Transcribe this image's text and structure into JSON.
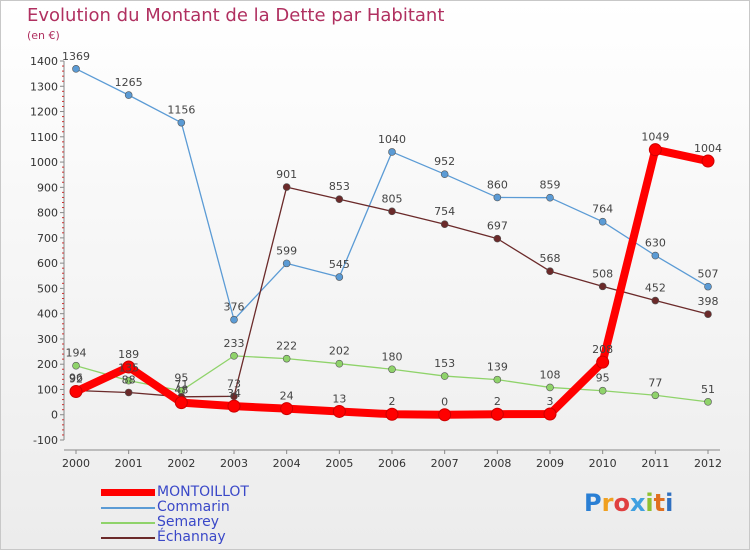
{
  "title": "Evolution du Montant de la Dette par Habitant",
  "subtitle": "(en €)",
  "logo_text": "Proxiti",
  "chart_data": {
    "type": "line",
    "x": [
      "2000",
      "2001",
      "2002",
      "2003",
      "2004",
      "2005",
      "2006",
      "2007",
      "2008",
      "2009",
      "2010",
      "2011",
      "2012"
    ],
    "ylim": [
      -100,
      1400
    ],
    "yticks": [
      -100,
      0,
      100,
      200,
      300,
      400,
      500,
      600,
      700,
      800,
      900,
      1000,
      1100,
      1200,
      1300,
      1400
    ],
    "grid": false,
    "legend_position": "bottom-left",
    "series": [
      {
        "name": "MONTOILLOT",
        "color": "#ff0000",
        "values": [
          92,
          189,
          48,
          34,
          24,
          13,
          2,
          0,
          2,
          3,
          208,
          1049,
          1004
        ]
      },
      {
        "name": "Commarin",
        "color": "#5b9bd5",
        "values": [
          1369,
          1265,
          1156,
          376,
          599,
          545,
          1040,
          952,
          860,
          859,
          764,
          630,
          507
        ]
      },
      {
        "name": "Semarey",
        "color": "#8fd36a",
        "values": [
          194,
          135,
          95,
          233,
          222,
          202,
          180,
          153,
          139,
          108,
          95,
          77,
          51
        ]
      },
      {
        "name": "Échannay",
        "color": "#6b2a2a",
        "values": [
          96,
          88,
          71,
          73,
          901,
          853,
          805,
          754,
          697,
          568,
          508,
          452,
          398
        ]
      }
    ]
  }
}
